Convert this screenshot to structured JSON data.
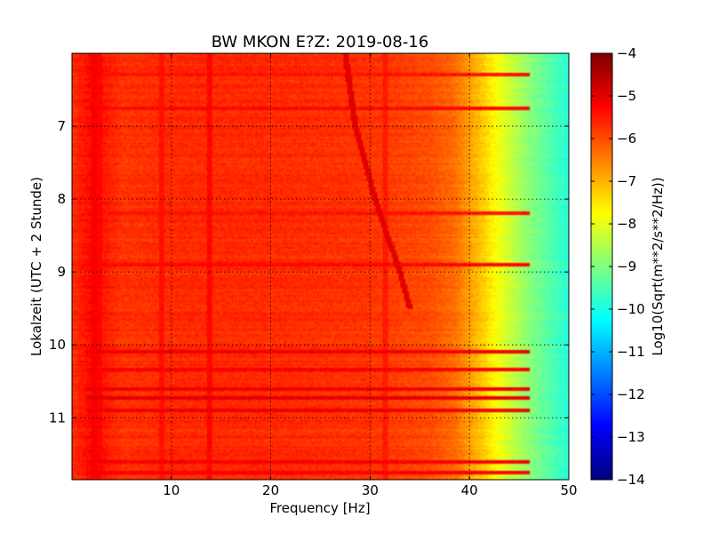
{
  "chart_data": {
    "type": "heatmap",
    "title": "BW MKON E?Z: 2019-08-16",
    "xlabel": "Frequency [Hz]",
    "ylabel": "Lokalzeit (UTC + 2 Stunde)",
    "xlim": [
      0,
      50
    ],
    "ylim": [
      11.85,
      6.0
    ],
    "y_axis_inverted": true,
    "grid": true,
    "x_ticks": [
      {
        "value": 10,
        "label": "10"
      },
      {
        "value": 20,
        "label": "20"
      },
      {
        "value": 30,
        "label": "30"
      },
      {
        "value": 40,
        "label": "40"
      },
      {
        "value": 50,
        "label": "50"
      }
    ],
    "y_ticks": [
      {
        "value": 7,
        "label": "7"
      },
      {
        "value": 8,
        "label": "8"
      },
      {
        "value": 9,
        "label": "9"
      },
      {
        "value": 10,
        "label": "10"
      },
      {
        "value": 11,
        "label": "11"
      }
    ],
    "colorbar": {
      "label": "Log10(Sqrt(m**2/s**2/Hz))",
      "range": [
        -14,
        -4
      ],
      "colormap": "jet",
      "ticks": [
        {
          "value": -4,
          "label": "−4"
        },
        {
          "value": -5,
          "label": "−5"
        },
        {
          "value": -6,
          "label": "−6"
        },
        {
          "value": -7,
          "label": "−7"
        },
        {
          "value": -8,
          "label": "−8"
        },
        {
          "value": -9,
          "label": "−9"
        },
        {
          "value": -10,
          "label": "−10"
        },
        {
          "value": -11,
          "label": "−11"
        },
        {
          "value": -12,
          "label": "−12"
        },
        {
          "value": -13,
          "label": "−13"
        },
        {
          "value": -14,
          "label": "−14"
        }
      ]
    },
    "background_profile": {
      "frequency_hz": [
        0,
        2,
        5,
        10,
        20,
        30,
        36,
        38.5,
        40,
        41.5,
        43,
        44.5,
        46,
        48,
        50
      ],
      "log_amplitude": [
        -5.7,
        -5.3,
        -5.75,
        -5.65,
        -5.65,
        -5.75,
        -6.0,
        -6.3,
        -6.8,
        -7.3,
        -7.9,
        -8.4,
        -8.9,
        -9.4,
        -9.9
      ]
    },
    "vertical_lines_hz": [
      {
        "frequency_hz": 2.3,
        "log_amplitude": -5.2
      },
      {
        "frequency_hz": 2.7,
        "log_amplitude": -5.3
      },
      {
        "frequency_hz": 9.0,
        "log_amplitude": -5.4
      },
      {
        "frequency_hz": 13.8,
        "log_amplitude": -5.3
      },
      {
        "frequency_hz": 31.5,
        "log_amplitude": -5.5
      }
    ],
    "horizontal_bands": [
      {
        "time": 6.3,
        "log_amplitude": -5.4
      },
      {
        "time": 6.75,
        "log_amplitude": -5.3
      },
      {
        "time": 8.2,
        "log_amplitude": -5.4
      },
      {
        "time": 8.9,
        "log_amplitude": -5.3
      },
      {
        "time": 10.1,
        "log_amplitude": -5.1
      },
      {
        "time": 10.35,
        "log_amplitude": -5.2
      },
      {
        "time": 10.6,
        "log_amplitude": -5.1
      },
      {
        "time": 10.72,
        "log_amplitude": -5.0
      },
      {
        "time": 10.9,
        "log_amplitude": -5.1
      },
      {
        "time": 11.6,
        "log_amplitude": -5.2
      },
      {
        "time": 11.75,
        "log_amplitude": -5.2
      }
    ],
    "drifting_line": {
      "points": [
        {
          "time": 6.0,
          "frequency_hz": 27.5
        },
        {
          "time": 7.0,
          "frequency_hz": 28.5
        },
        {
          "time": 8.0,
          "frequency_hz": 30.5
        },
        {
          "time": 9.0,
          "frequency_hz": 33.0
        },
        {
          "time": 9.5,
          "frequency_hz": 34.0
        }
      ],
      "log_amplitude": -5.0
    }
  }
}
